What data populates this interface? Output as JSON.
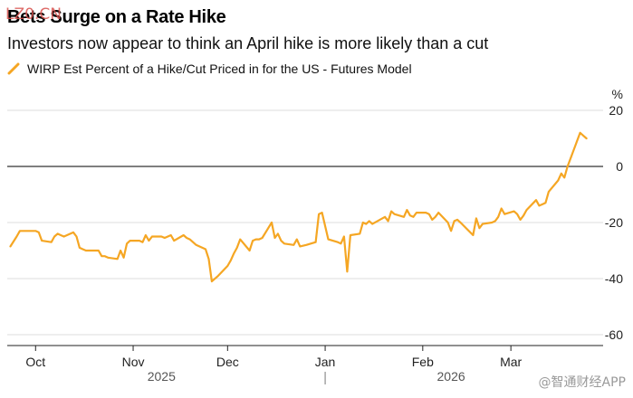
{
  "header": {
    "title": "Bets Surge on a Rate Hike",
    "subtitle": "Investors now appear to think an April hike is more likely than a cut",
    "watermark": "LZ0.CN",
    "brand": "@智通财经APP"
  },
  "legend": {
    "label": "WIRP Est Percent of a Hike/Cut Priced in for the US - Futures Model",
    "color": "#f5a623"
  },
  "chart_data": {
    "type": "line",
    "title": "Bets Surge on a Rate Hike",
    "subtitle": "Investors now appear to think an April hike is more likely than a cut",
    "ylabel": "%",
    "xlabel": "",
    "ylim": [
      -60,
      20
    ],
    "yticks": [
      20,
      0,
      -20,
      -40,
      -60
    ],
    "xlim": [
      "2025-09-22",
      "2026-03-28"
    ],
    "month_ticks": [
      {
        "label": "Oct",
        "date": "2025-10-01"
      },
      {
        "label": "Nov",
        "date": "2025-11-01"
      },
      {
        "label": "Dec",
        "date": "2025-12-01"
      },
      {
        "label": "Jan",
        "date": "2026-01-01"
      },
      {
        "label": "Feb",
        "date": "2026-02-01"
      },
      {
        "label": "Mar",
        "date": "2026-03-01"
      }
    ],
    "year_labels": [
      {
        "label": "2025",
        "date": "2025-11-10"
      },
      {
        "label": "2026",
        "date": "2026-02-10"
      }
    ],
    "year_divider": "2026-01-01",
    "grid": true,
    "zero_line": true,
    "legend_position": "top-left",
    "series": [
      {
        "name": "WIRP Est Percent of a Hike/Cut Priced in for the US - Futures Model",
        "color": "#f5a623",
        "points": [
          [
            "2025-09-23",
            -28.5
          ],
          [
            "2025-09-25",
            -25
          ],
          [
            "2025-09-26",
            -23
          ],
          [
            "2025-09-29",
            -23
          ],
          [
            "2025-10-01",
            -23
          ],
          [
            "2025-10-02",
            -23.5
          ],
          [
            "2025-10-03",
            -26.5
          ],
          [
            "2025-10-06",
            -27
          ],
          [
            "2025-10-07",
            -25
          ],
          [
            "2025-10-08",
            -24
          ],
          [
            "2025-10-09",
            -24.5
          ],
          [
            "2025-10-10",
            -25
          ],
          [
            "2025-10-13",
            -23.5
          ],
          [
            "2025-10-14",
            -25
          ],
          [
            "2025-10-15",
            -29
          ],
          [
            "2025-10-16",
            -29.5
          ],
          [
            "2025-10-17",
            -30
          ],
          [
            "2025-10-20",
            -30
          ],
          [
            "2025-10-21",
            -30
          ],
          [
            "2025-10-22",
            -32
          ],
          [
            "2025-10-23",
            -32
          ],
          [
            "2025-10-24",
            -32.5
          ],
          [
            "2025-10-27",
            -33
          ],
          [
            "2025-10-28",
            -30
          ],
          [
            "2025-10-29",
            -32.5
          ],
          [
            "2025-10-30",
            -27.5
          ],
          [
            "2025-10-31",
            -26.5
          ],
          [
            "2025-11-03",
            -26.5
          ],
          [
            "2025-11-04",
            -27
          ],
          [
            "2025-11-05",
            -24.5
          ],
          [
            "2025-11-06",
            -26.5
          ],
          [
            "2025-11-07",
            -25
          ],
          [
            "2025-11-10",
            -25
          ],
          [
            "2025-11-11",
            -25.5
          ],
          [
            "2025-11-12",
            -25
          ],
          [
            "2025-11-13",
            -24.5
          ],
          [
            "2025-11-14",
            -26.5
          ],
          [
            "2025-11-17",
            -24.5
          ],
          [
            "2025-11-18",
            -25.5
          ],
          [
            "2025-11-19",
            -26
          ],
          [
            "2025-11-20",
            -27
          ],
          [
            "2025-11-21",
            -28
          ],
          [
            "2025-11-24",
            -29.5
          ],
          [
            "2025-11-25",
            -33
          ],
          [
            "2025-11-26",
            -41
          ],
          [
            "2025-11-28",
            -39
          ],
          [
            "2025-12-01",
            -35.5
          ],
          [
            "2025-12-02",
            -33.5
          ],
          [
            "2025-12-03",
            -31
          ],
          [
            "2025-12-04",
            -29
          ],
          [
            "2025-12-05",
            -26
          ],
          [
            "2025-12-08",
            -30
          ],
          [
            "2025-12-09",
            -26.5
          ],
          [
            "2025-12-10",
            -26
          ],
          [
            "2025-12-11",
            -26
          ],
          [
            "2025-12-12",
            -25.5
          ],
          [
            "2025-12-15",
            -20
          ],
          [
            "2025-12-16",
            -25.5
          ],
          [
            "2025-12-17",
            -24
          ],
          [
            "2025-12-18",
            -26.5
          ],
          [
            "2025-12-19",
            -27.5
          ],
          [
            "2025-12-22",
            -28
          ],
          [
            "2025-12-23",
            -26
          ],
          [
            "2025-12-24",
            -28.5
          ],
          [
            "2025-12-26",
            -28
          ],
          [
            "2025-12-29",
            -27
          ],
          [
            "2025-12-30",
            -17
          ],
          [
            "2025-12-31",
            -16.5
          ],
          [
            "2026-01-02",
            -26
          ],
          [
            "2026-01-05",
            -27
          ],
          [
            "2026-01-06",
            -27.5
          ],
          [
            "2026-01-07",
            -25
          ],
          [
            "2026-01-08",
            -37.5
          ],
          [
            "2026-01-09",
            -24.5
          ],
          [
            "2026-01-12",
            -24
          ],
          [
            "2026-01-13",
            -20
          ],
          [
            "2026-01-14",
            -20.5
          ],
          [
            "2026-01-15",
            -19.5
          ],
          [
            "2026-01-16",
            -20.5
          ],
          [
            "2026-01-20",
            -18
          ],
          [
            "2026-01-21",
            -19.5
          ],
          [
            "2026-01-22",
            -16
          ],
          [
            "2026-01-23",
            -17
          ],
          [
            "2026-01-26",
            -18
          ],
          [
            "2026-01-27",
            -15.5
          ],
          [
            "2026-01-28",
            -17.5
          ],
          [
            "2026-01-29",
            -18
          ],
          [
            "2026-01-30",
            -16.5
          ],
          [
            "2026-02-02",
            -16.5
          ],
          [
            "2026-02-03",
            -17
          ],
          [
            "2026-02-04",
            -19
          ],
          [
            "2026-02-05",
            -18
          ],
          [
            "2026-02-06",
            -16.5
          ],
          [
            "2026-02-09",
            -20
          ],
          [
            "2026-02-10",
            -23
          ],
          [
            "2026-02-11",
            -19.5
          ],
          [
            "2026-02-12",
            -19
          ],
          [
            "2026-02-13",
            -20
          ],
          [
            "2026-02-17",
            -24.5
          ],
          [
            "2026-02-18",
            -18.5
          ],
          [
            "2026-02-19",
            -22
          ],
          [
            "2026-02-20",
            -20.5
          ],
          [
            "2026-02-23",
            -20
          ],
          [
            "2026-02-24",
            -19.5
          ],
          [
            "2026-02-25",
            -18
          ],
          [
            "2026-02-26",
            -15
          ],
          [
            "2026-02-27",
            -17
          ],
          [
            "2026-03-02",
            -16
          ],
          [
            "2026-03-03",
            -17
          ],
          [
            "2026-03-04",
            -19
          ],
          [
            "2026-03-05",
            -17.5
          ],
          [
            "2026-03-06",
            -15.5
          ],
          [
            "2026-03-09",
            -12
          ],
          [
            "2026-03-10",
            -14
          ],
          [
            "2026-03-11",
            -13.5
          ],
          [
            "2026-03-12",
            -13
          ],
          [
            "2026-03-13",
            -9
          ],
          [
            "2026-03-16",
            -5
          ],
          [
            "2026-03-17",
            -2.5
          ],
          [
            "2026-03-18",
            -4
          ],
          [
            "2026-03-19",
            0
          ],
          [
            "2026-03-20",
            3
          ],
          [
            "2026-03-23",
            12
          ],
          [
            "2026-03-24",
            11
          ],
          [
            "2026-03-25",
            10
          ]
        ]
      }
    ]
  }
}
